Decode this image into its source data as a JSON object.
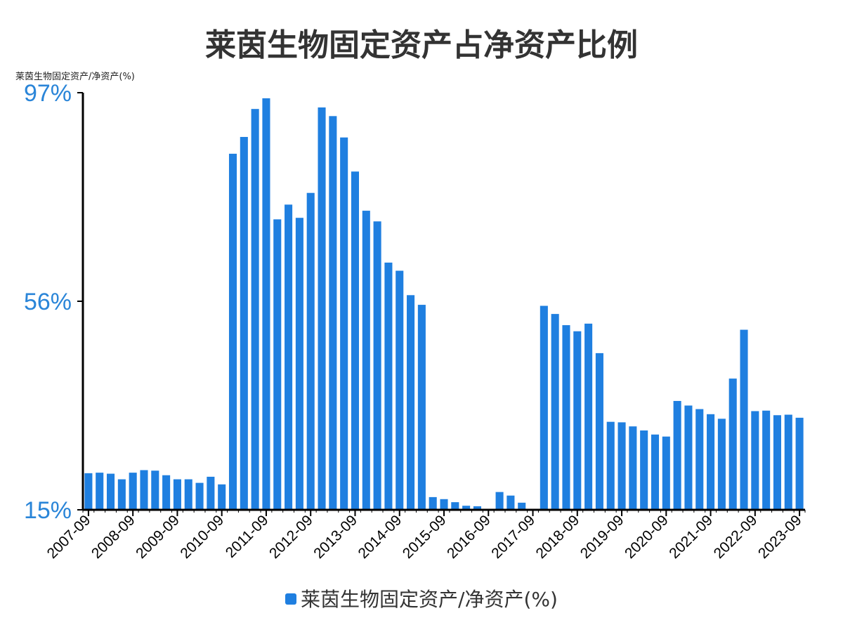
{
  "chart_data": {
    "type": "bar",
    "title": "莱茵生物固定资产占净资产比例",
    "ylabel": "莱茵生物固定资产/净资产(%)",
    "ylim": [
      15,
      97
    ],
    "yticks": [
      "15%",
      "56%",
      "97%"
    ],
    "ytick_values": [
      15,
      56,
      97
    ],
    "xtick_labels": [
      "2007-09",
      "2008-09",
      "2009-09",
      "2010-09",
      "2011-09",
      "2012-09",
      "2013-09",
      "2014-09",
      "2015-09",
      "2016-09",
      "2017-09",
      "2018-09",
      "2019-09",
      "2020-09",
      "2021-09",
      "2022-09",
      "2023-09"
    ],
    "xtick_category_index": [
      0,
      4,
      8,
      12,
      16,
      20,
      24,
      28,
      32,
      36,
      40,
      44,
      48,
      52,
      56,
      60,
      64
    ],
    "bar_color": "#1f7fe0",
    "grid": false,
    "legend_position": "bottom",
    "categories": [
      "2007-09",
      "2007-12",
      "2008-03",
      "2008-06",
      "2008-09",
      "2008-12",
      "2009-03",
      "2009-06",
      "2009-09",
      "2009-12",
      "2010-03",
      "2010-06",
      "2010-09",
      "2010-12",
      "2011-03",
      "2011-06",
      "2011-09",
      "2011-12",
      "2012-03",
      "2012-06",
      "2012-09",
      "2012-12",
      "2013-03",
      "2013-06",
      "2013-09",
      "2013-12",
      "2014-03",
      "2014-06",
      "2014-09",
      "2014-12",
      "2015-03",
      "2015-06",
      "2015-09",
      "2015-12",
      "2016-03",
      "2016-06",
      "2016-09",
      "2016-12",
      "2017-03",
      "2017-06",
      "2017-09",
      "2017-12",
      "2018-03",
      "2018-06",
      "2018-09",
      "2018-12",
      "2019-03",
      "2019-06",
      "2019-09",
      "2019-12",
      "2020-03",
      "2020-06",
      "2020-09",
      "2020-12",
      "2021-03",
      "2021-06",
      "2021-09",
      "2021-12",
      "2022-03",
      "2022-06",
      "2022-09",
      "2022-12",
      "2023-03",
      "2023-06",
      "2023-09"
    ],
    "series": [
      {
        "name": "莱茵生物固定资产/净资产(%)",
        "values": [
          22.2,
          22.3,
          22.1,
          21.0,
          22.3,
          22.8,
          22.7,
          21.8,
          21.0,
          21.0,
          20.3,
          21.5,
          20.0,
          85.0,
          88.3,
          93.8,
          95.9,
          72.1,
          75.0,
          72.4,
          77.3,
          94.1,
          92.4,
          88.2,
          81.5,
          73.8,
          71.7,
          63.6,
          62.0,
          57.2,
          55.3,
          17.5,
          17.1,
          16.5,
          15.8,
          15.7,
          15.2,
          18.5,
          17.8,
          16.4,
          15.2,
          55.1,
          53.5,
          51.3,
          50.1,
          51.6,
          45.8,
          32.3,
          32.2,
          31.4,
          30.6,
          29.8,
          29.4,
          36.4,
          35.5,
          34.8,
          33.8,
          32.9,
          40.8,
          50.4,
          34.4,
          34.5,
          33.6,
          33.7,
          33.1
        ]
      }
    ]
  }
}
